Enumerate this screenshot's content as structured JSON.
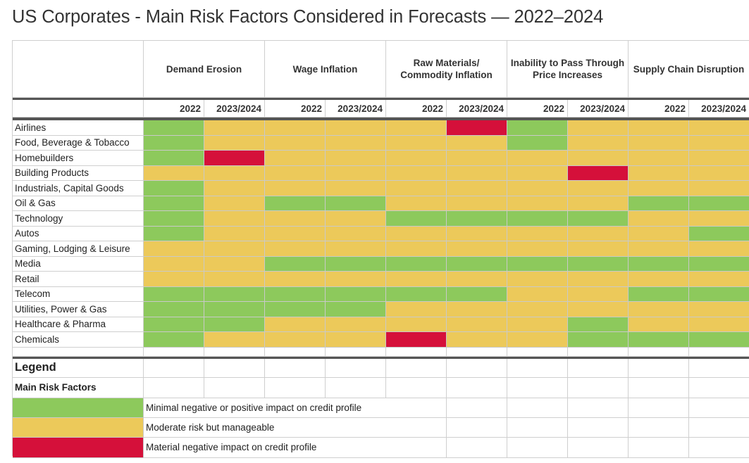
{
  "title": "US Corporates - Main Risk Factors Considered in Forecasts — 2022–2024",
  "colors": {
    "green": "#8dc95c",
    "yellow": "#ecc95a",
    "red": "#d5103a"
  },
  "chart_data": {
    "type": "heatmap",
    "title": "US Corporates - Main Risk Factors Considered in Forecasts — 2022–2024",
    "risk_factors": [
      "Demand Erosion",
      "Wage Inflation",
      "Raw Materials/\nCommodity Inflation",
      "Inability to Pass Through\nPrice Increases",
      "Supply Chain Disruption"
    ],
    "periods": [
      "2022",
      "2023/2024"
    ],
    "sectors": [
      "Airlines",
      "Food, Beverage & Tobacco",
      "Homebuilders",
      "Building Products",
      "Industrials, Capital Goods",
      "Oil & Gas",
      "Technology",
      "Autos",
      "Gaming, Lodging & Leisure",
      "Media",
      "Retail",
      "Telecom",
      "Utilities, Power & Gas",
      "Healthcare & Pharma",
      "Chemicals"
    ],
    "values": [
      [
        "green",
        "yellow",
        "yellow",
        "yellow",
        "yellow",
        "red",
        "green",
        "yellow",
        "yellow",
        "yellow"
      ],
      [
        "green",
        "yellow",
        "yellow",
        "yellow",
        "yellow",
        "yellow",
        "green",
        "yellow",
        "yellow",
        "yellow"
      ],
      [
        "green",
        "red",
        "yellow",
        "yellow",
        "yellow",
        "yellow",
        "yellow",
        "yellow",
        "yellow",
        "yellow"
      ],
      [
        "yellow",
        "yellow",
        "yellow",
        "yellow",
        "yellow",
        "yellow",
        "yellow",
        "red",
        "yellow",
        "yellow"
      ],
      [
        "green",
        "yellow",
        "yellow",
        "yellow",
        "yellow",
        "yellow",
        "yellow",
        "yellow",
        "yellow",
        "yellow"
      ],
      [
        "green",
        "yellow",
        "green",
        "green",
        "yellow",
        "yellow",
        "yellow",
        "yellow",
        "green",
        "green"
      ],
      [
        "green",
        "yellow",
        "yellow",
        "yellow",
        "green",
        "green",
        "green",
        "green",
        "yellow",
        "yellow"
      ],
      [
        "green",
        "yellow",
        "yellow",
        "yellow",
        "yellow",
        "yellow",
        "yellow",
        "yellow",
        "yellow",
        "green"
      ],
      [
        "yellow",
        "yellow",
        "yellow",
        "yellow",
        "yellow",
        "yellow",
        "yellow",
        "yellow",
        "yellow",
        "yellow"
      ],
      [
        "yellow",
        "yellow",
        "green",
        "green",
        "green",
        "green",
        "green",
        "green",
        "green",
        "green"
      ],
      [
        "yellow",
        "yellow",
        "yellow",
        "yellow",
        "yellow",
        "yellow",
        "yellow",
        "yellow",
        "yellow",
        "yellow"
      ],
      [
        "green",
        "green",
        "green",
        "green",
        "green",
        "green",
        "yellow",
        "yellow",
        "green",
        "green"
      ],
      [
        "green",
        "green",
        "green",
        "green",
        "yellow",
        "yellow",
        "yellow",
        "yellow",
        "yellow",
        "yellow"
      ],
      [
        "green",
        "green",
        "yellow",
        "yellow",
        "yellow",
        "yellow",
        "yellow",
        "green",
        "yellow",
        "yellow"
      ],
      [
        "green",
        "yellow",
        "yellow",
        "yellow",
        "red",
        "yellow",
        "yellow",
        "green",
        "green",
        "green"
      ]
    ],
    "legend": {
      "title": "Legend",
      "subtitle": "Main Risk Factors",
      "items": [
        {
          "color": "green",
          "label": "Minimal negative or positive impact on credit profile"
        },
        {
          "color": "yellow",
          "label": "Moderate risk but manageable"
        },
        {
          "color": "red",
          "label": "Material negative impact on credit profile"
        }
      ]
    }
  }
}
